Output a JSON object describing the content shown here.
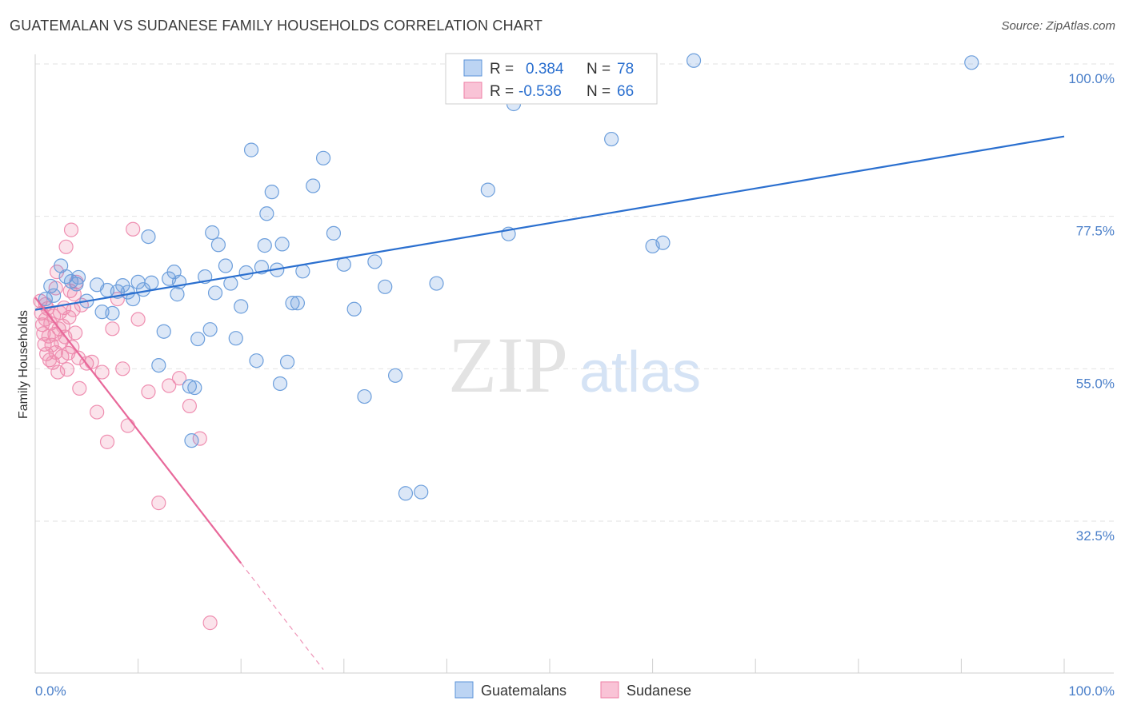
{
  "title": "GUATEMALAN VS SUDANESE FAMILY HOUSEHOLDS CORRELATION CHART",
  "source": "Source: ZipAtlas.com",
  "watermark": {
    "zip": "ZIP",
    "atlas": "atlas"
  },
  "colors": {
    "blue": "#5b93d9",
    "blue_line": "#2a6fcf",
    "pink": "#ee7fa6",
    "pink_line": "#e8689a",
    "tick_text": "#4a7fc9"
  },
  "chart_data": {
    "type": "scatter",
    "title": "GUATEMALAN VS SUDANESE FAMILY HOUSEHOLDS CORRELATION CHART",
    "ylabel": "Family Households",
    "xlabel": "",
    "xlim": [
      0,
      100
    ],
    "ylim": [
      12,
      103
    ],
    "y_ticks": [
      100,
      77.5,
      55,
      32.5
    ],
    "y_tick_labels": [
      "100.0%",
      "77.5%",
      "55.0%",
      "32.5%"
    ],
    "x_tick_labels": [
      "0.0%",
      "100.0%"
    ],
    "legend": [
      {
        "name": "Guatemalans",
        "r_label": "R =",
        "r": "0.384",
        "n_label": "N =",
        "n": "78"
      },
      {
        "name": "Sudanese",
        "r_label": "R =",
        "r": "-0.536",
        "n_label": "N =",
        "n": "66"
      }
    ],
    "series": [
      {
        "name": "Guatemalans",
        "color": "#5b93d9",
        "trend": {
          "x": [
            0,
            100
          ],
          "y": [
            63.7,
            89.3
          ],
          "dashed_to": null
        },
        "points": [
          [
            1,
            65.3
          ],
          [
            1.5,
            67.2
          ],
          [
            1.8,
            65.8
          ],
          [
            2.5,
            70.2
          ],
          [
            3,
            68.6
          ],
          [
            3.5,
            67.9
          ],
          [
            4,
            67.5
          ],
          [
            4.2,
            68.5
          ],
          [
            5,
            65
          ],
          [
            6,
            67.4
          ],
          [
            6.5,
            63.4
          ],
          [
            7,
            66.6
          ],
          [
            7.5,
            63.2
          ],
          [
            8,
            66.4
          ],
          [
            8.5,
            67.3
          ],
          [
            9,
            66.3
          ],
          [
            9.5,
            65.3
          ],
          [
            10,
            67.8
          ],
          [
            10.5,
            66.7
          ],
          [
            11,
            74.5
          ],
          [
            11.3,
            67.7
          ],
          [
            12,
            55.5
          ],
          [
            12.5,
            60.5
          ],
          [
            13,
            68.3
          ],
          [
            13.5,
            69.3
          ],
          [
            13.8,
            66
          ],
          [
            14,
            67.8
          ],
          [
            15,
            52.4
          ],
          [
            15.2,
            44.4
          ],
          [
            15.5,
            52.2
          ],
          [
            15.8,
            59.4
          ],
          [
            16.5,
            68.6
          ],
          [
            17,
            60.8
          ],
          [
            17.2,
            75.1
          ],
          [
            17.5,
            66.2
          ],
          [
            17.8,
            73.3
          ],
          [
            18.5,
            70.2
          ],
          [
            19,
            67.6
          ],
          [
            19.5,
            59.5
          ],
          [
            20,
            64.2
          ],
          [
            20.5,
            69.2
          ],
          [
            21,
            87.3
          ],
          [
            21.5,
            56.2
          ],
          [
            22,
            70
          ],
          [
            22.3,
            73.2
          ],
          [
            22.5,
            77.9
          ],
          [
            23,
            81.1
          ],
          [
            23.5,
            69.6
          ],
          [
            23.8,
            52.8
          ],
          [
            24,
            73.4
          ],
          [
            24.5,
            56
          ],
          [
            25,
            64.7
          ],
          [
            25.5,
            64.7
          ],
          [
            26,
            69.4
          ],
          [
            27,
            82
          ],
          [
            28,
            86.1
          ],
          [
            29,
            75
          ],
          [
            30,
            70.4
          ],
          [
            31,
            63.8
          ],
          [
            32,
            50.9
          ],
          [
            33,
            70.8
          ],
          [
            34,
            67.1
          ],
          [
            35,
            54
          ],
          [
            36,
            36.6
          ],
          [
            37.5,
            36.8
          ],
          [
            39,
            67.6
          ],
          [
            44,
            81.4
          ],
          [
            46,
            74.9
          ],
          [
            46.5,
            94.1
          ],
          [
            56,
            88.9
          ],
          [
            60,
            73.1
          ],
          [
            61,
            73.6
          ],
          [
            64,
            100.5
          ],
          [
            91,
            100.2
          ]
        ]
      },
      {
        "name": "Sudanese",
        "color": "#ee7fa6",
        "trend": {
          "x": [
            0,
            20
          ],
          "y": [
            65.5,
            26.3
          ],
          "dashed_to": [
            28,
            10.6
          ]
        },
        "points": [
          [
            0.5,
            65
          ],
          [
            0.6,
            63.2
          ],
          [
            0.7,
            61.5
          ],
          [
            0.8,
            60.2
          ],
          [
            0.9,
            58.6
          ],
          [
            1,
            64.5
          ],
          [
            1,
            62.3
          ],
          [
            1.1,
            57.2
          ],
          [
            1.2,
            63.9
          ],
          [
            1.3,
            59.8
          ],
          [
            1.4,
            56.3
          ],
          [
            1.5,
            61.7
          ],
          [
            1.6,
            58.5
          ],
          [
            1.7,
            55.9
          ],
          [
            1.8,
            62.8
          ],
          [
            1.9,
            60.1
          ],
          [
            2,
            66.9
          ],
          [
            2,
            57.4
          ],
          [
            2.1,
            69.3
          ],
          [
            2.2,
            54.5
          ],
          [
            2.3,
            60.9
          ],
          [
            2.4,
            63.3
          ],
          [
            2.5,
            58.9
          ],
          [
            2.6,
            56.8
          ],
          [
            2.7,
            61.3
          ],
          [
            2.8,
            64
          ],
          [
            2.9,
            59.7
          ],
          [
            3,
            73
          ],
          [
            3.1,
            54.9
          ],
          [
            3.2,
            57.3
          ],
          [
            3.3,
            62.6
          ],
          [
            3.4,
            66.5
          ],
          [
            3.5,
            75.5
          ],
          [
            3.6,
            58.2
          ],
          [
            3.7,
            63.7
          ],
          [
            3.8,
            66
          ],
          [
            3.9,
            60.3
          ],
          [
            4,
            67.8
          ],
          [
            4.2,
            56.6
          ],
          [
            4.3,
            52.1
          ],
          [
            4.5,
            64.4
          ],
          [
            5,
            55.8
          ],
          [
            5.5,
            56
          ],
          [
            6,
            48.6
          ],
          [
            6.5,
            54.5
          ],
          [
            7,
            44.2
          ],
          [
            7.5,
            60.9
          ],
          [
            8,
            65.3
          ],
          [
            8.5,
            55
          ],
          [
            9,
            46.6
          ],
          [
            9.5,
            75.6
          ],
          [
            10,
            62.3
          ],
          [
            11,
            51.6
          ],
          [
            12,
            35.2
          ],
          [
            13,
            52.5
          ],
          [
            14,
            53.6
          ],
          [
            15,
            49.5
          ],
          [
            16,
            44.7
          ],
          [
            17,
            17.5
          ]
        ]
      }
    ]
  }
}
